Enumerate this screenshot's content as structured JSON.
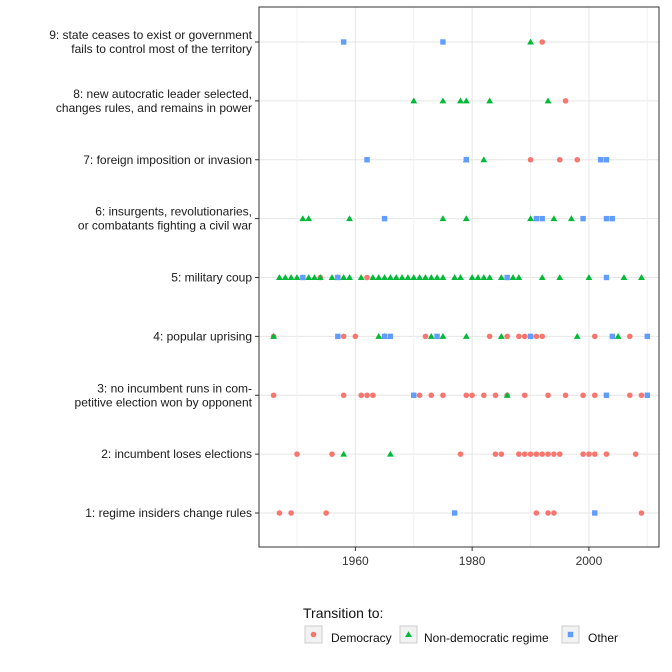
{
  "chart_data": {
    "type": "scatter",
    "title": "",
    "xlabel": "",
    "ylabel": "",
    "xlim": [
      1943.5,
      2012
    ],
    "x_ticks": [
      1960,
      1980,
      2000
    ],
    "grid": true,
    "legend_position": "bottom",
    "legend_title": "Transition to:",
    "categories": [
      {
        "id": 1,
        "label_lines": [
          "1: regime insiders change rules"
        ]
      },
      {
        "id": 2,
        "label_lines": [
          "2: incumbent loses elections"
        ]
      },
      {
        "id": 3,
        "label_lines": [
          "3: no incumbent runs in com-",
          "petitive election won by opponent"
        ]
      },
      {
        "id": 4,
        "label_lines": [
          "4: popular uprising"
        ]
      },
      {
        "id": 5,
        "label_lines": [
          "5: military coup"
        ]
      },
      {
        "id": 6,
        "label_lines": [
          "6: insurgents, revolutionaries,",
          "or combatants fighting a civil war"
        ]
      },
      {
        "id": 7,
        "label_lines": [
          "7: foreign imposition or invasion"
        ]
      },
      {
        "id": 8,
        "label_lines": [
          "8: new autocratic leader selected,",
          "changes rules, and remains in power"
        ]
      },
      {
        "id": 9,
        "label_lines": [
          "9: state ceases to exist or government",
          "fails to control most of the territory"
        ]
      }
    ],
    "series": [
      {
        "name": "Democracy",
        "color": "#F8766D",
        "shape": "circle",
        "points": [
          {
            "cat": 1,
            "x": 1947
          },
          {
            "cat": 1,
            "x": 1949
          },
          {
            "cat": 1,
            "x": 1955
          },
          {
            "cat": 1,
            "x": 1991
          },
          {
            "cat": 1,
            "x": 1993
          },
          {
            "cat": 1,
            "x": 1994
          },
          {
            "cat": 1,
            "x": 2009
          },
          {
            "cat": 2,
            "x": 1950
          },
          {
            "cat": 2,
            "x": 1956
          },
          {
            "cat": 2,
            "x": 1978
          },
          {
            "cat": 2,
            "x": 1984
          },
          {
            "cat": 2,
            "x": 1985
          },
          {
            "cat": 2,
            "x": 1988
          },
          {
            "cat": 2,
            "x": 1989
          },
          {
            "cat": 2,
            "x": 1990
          },
          {
            "cat": 2,
            "x": 1991
          },
          {
            "cat": 2,
            "x": 1992
          },
          {
            "cat": 2,
            "x": 1993
          },
          {
            "cat": 2,
            "x": 1994
          },
          {
            "cat": 2,
            "x": 1995
          },
          {
            "cat": 2,
            "x": 1999
          },
          {
            "cat": 2,
            "x": 2000
          },
          {
            "cat": 2,
            "x": 2001
          },
          {
            "cat": 2,
            "x": 2003
          },
          {
            "cat": 2,
            "x": 2008
          },
          {
            "cat": 3,
            "x": 1946
          },
          {
            "cat": 3,
            "x": 1958
          },
          {
            "cat": 3,
            "x": 1961
          },
          {
            "cat": 3,
            "x": 1962
          },
          {
            "cat": 3,
            "x": 1963
          },
          {
            "cat": 3,
            "x": 1970
          },
          {
            "cat": 3,
            "x": 1971
          },
          {
            "cat": 3,
            "x": 1973
          },
          {
            "cat": 3,
            "x": 1975
          },
          {
            "cat": 3,
            "x": 1979
          },
          {
            "cat": 3,
            "x": 1980
          },
          {
            "cat": 3,
            "x": 1982
          },
          {
            "cat": 3,
            "x": 1984
          },
          {
            "cat": 3,
            "x": 1986
          },
          {
            "cat": 3,
            "x": 1989
          },
          {
            "cat": 3,
            "x": 1993
          },
          {
            "cat": 3,
            "x": 1996
          },
          {
            "cat": 3,
            "x": 1999
          },
          {
            "cat": 3,
            "x": 2001
          },
          {
            "cat": 3,
            "x": 2007
          },
          {
            "cat": 3,
            "x": 2009
          },
          {
            "cat": 4,
            "x": 1946
          },
          {
            "cat": 4,
            "x": 1958
          },
          {
            "cat": 4,
            "x": 1960
          },
          {
            "cat": 4,
            "x": 1972
          },
          {
            "cat": 4,
            "x": 1983
          },
          {
            "cat": 4,
            "x": 1986
          },
          {
            "cat": 4,
            "x": 1988
          },
          {
            "cat": 4,
            "x": 1989
          },
          {
            "cat": 4,
            "x": 1990
          },
          {
            "cat": 4,
            "x": 1991
          },
          {
            "cat": 4,
            "x": 1992
          },
          {
            "cat": 4,
            "x": 2001
          },
          {
            "cat": 4,
            "x": 2007
          },
          {
            "cat": 5,
            "x": 1954
          },
          {
            "cat": 5,
            "x": 1962
          },
          {
            "cat": 7,
            "x": 1990
          },
          {
            "cat": 7,
            "x": 1995
          },
          {
            "cat": 7,
            "x": 1998
          },
          {
            "cat": 8,
            "x": 1996
          },
          {
            "cat": 9,
            "x": 1992
          }
        ]
      },
      {
        "name": "Non-democratic regime",
        "color": "#00BA38",
        "shape": "triangle",
        "points": [
          {
            "cat": 2,
            "x": 1958
          },
          {
            "cat": 2,
            "x": 1966
          },
          {
            "cat": 3,
            "x": 1986
          },
          {
            "cat": 4,
            "x": 1946
          },
          {
            "cat": 4,
            "x": 1964
          },
          {
            "cat": 4,
            "x": 1965
          },
          {
            "cat": 4,
            "x": 1973
          },
          {
            "cat": 4,
            "x": 1975
          },
          {
            "cat": 4,
            "x": 1979
          },
          {
            "cat": 4,
            "x": 1985
          },
          {
            "cat": 4,
            "x": 1998
          },
          {
            "cat": 4,
            "x": 2005
          },
          {
            "cat": 5,
            "x": 1947
          },
          {
            "cat": 5,
            "x": 1948
          },
          {
            "cat": 5,
            "x": 1949
          },
          {
            "cat": 5,
            "x": 1950
          },
          {
            "cat": 5,
            "x": 1952
          },
          {
            "cat": 5,
            "x": 1953
          },
          {
            "cat": 5,
            "x": 1954
          },
          {
            "cat": 5,
            "x": 1956
          },
          {
            "cat": 5,
            "x": 1957
          },
          {
            "cat": 5,
            "x": 1958
          },
          {
            "cat": 5,
            "x": 1959
          },
          {
            "cat": 5,
            "x": 1961
          },
          {
            "cat": 5,
            "x": 1963
          },
          {
            "cat": 5,
            "x": 1964
          },
          {
            "cat": 5,
            "x": 1965
          },
          {
            "cat": 5,
            "x": 1966
          },
          {
            "cat": 5,
            "x": 1967
          },
          {
            "cat": 5,
            "x": 1968
          },
          {
            "cat": 5,
            "x": 1969
          },
          {
            "cat": 5,
            "x": 1970
          },
          {
            "cat": 5,
            "x": 1971
          },
          {
            "cat": 5,
            "x": 1972
          },
          {
            "cat": 5,
            "x": 1973
          },
          {
            "cat": 5,
            "x": 1974
          },
          {
            "cat": 5,
            "x": 1975
          },
          {
            "cat": 5,
            "x": 1977
          },
          {
            "cat": 5,
            "x": 1978
          },
          {
            "cat": 5,
            "x": 1980
          },
          {
            "cat": 5,
            "x": 1981
          },
          {
            "cat": 5,
            "x": 1982
          },
          {
            "cat": 5,
            "x": 1983
          },
          {
            "cat": 5,
            "x": 1985
          },
          {
            "cat": 5,
            "x": 1987
          },
          {
            "cat": 5,
            "x": 1988
          },
          {
            "cat": 5,
            "x": 1992
          },
          {
            "cat": 5,
            "x": 1995
          },
          {
            "cat": 5,
            "x": 2000
          },
          {
            "cat": 5,
            "x": 2006
          },
          {
            "cat": 5,
            "x": 2009
          },
          {
            "cat": 6,
            "x": 1951
          },
          {
            "cat": 6,
            "x": 1952
          },
          {
            "cat": 6,
            "x": 1959
          },
          {
            "cat": 6,
            "x": 1975
          },
          {
            "cat": 6,
            "x": 1979
          },
          {
            "cat": 6,
            "x": 1990
          },
          {
            "cat": 6,
            "x": 1994
          },
          {
            "cat": 6,
            "x": 1997
          },
          {
            "cat": 7,
            "x": 1979
          },
          {
            "cat": 7,
            "x": 1982
          },
          {
            "cat": 8,
            "x": 1970
          },
          {
            "cat": 8,
            "x": 1975
          },
          {
            "cat": 8,
            "x": 1978
          },
          {
            "cat": 8,
            "x": 1979
          },
          {
            "cat": 8,
            "x": 1983
          },
          {
            "cat": 8,
            "x": 1993
          },
          {
            "cat": 9,
            "x": 1990
          }
        ]
      },
      {
        "name": "Other",
        "color": "#619CFF",
        "shape": "square",
        "points": [
          {
            "cat": 1,
            "x": 1977
          },
          {
            "cat": 1,
            "x": 2001
          },
          {
            "cat": 3,
            "x": 1970
          },
          {
            "cat": 3,
            "x": 2003
          },
          {
            "cat": 3,
            "x": 2010
          },
          {
            "cat": 4,
            "x": 1957
          },
          {
            "cat": 4,
            "x": 1965
          },
          {
            "cat": 4,
            "x": 1966
          },
          {
            "cat": 4,
            "x": 1974
          },
          {
            "cat": 4,
            "x": 1990
          },
          {
            "cat": 4,
            "x": 2004
          },
          {
            "cat": 4,
            "x": 2010
          },
          {
            "cat": 5,
            "x": 1951
          },
          {
            "cat": 5,
            "x": 1957
          },
          {
            "cat": 5,
            "x": 1986
          },
          {
            "cat": 5,
            "x": 2003
          },
          {
            "cat": 6,
            "x": 1965
          },
          {
            "cat": 6,
            "x": 1991
          },
          {
            "cat": 6,
            "x": 1992
          },
          {
            "cat": 6,
            "x": 1999
          },
          {
            "cat": 6,
            "x": 2003
          },
          {
            "cat": 6,
            "x": 2004
          },
          {
            "cat": 7,
            "x": 1962
          },
          {
            "cat": 7,
            "x": 1979
          },
          {
            "cat": 7,
            "x": 2002
          },
          {
            "cat": 7,
            "x": 2003
          },
          {
            "cat": 9,
            "x": 1958
          },
          {
            "cat": 9,
            "x": 1975
          }
        ]
      }
    ]
  }
}
